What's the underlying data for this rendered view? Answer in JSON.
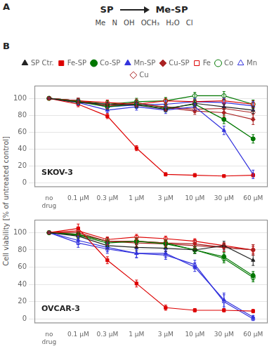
{
  "chart_data": [
    {
      "type": "line",
      "title": "SKOV-3",
      "y_label": "Cell viability [% of untreated control]",
      "annotations": [
        "A",
        "B",
        "SP",
        "Me-SP",
        "Me",
        "N",
        "OH",
        "OCH₃",
        "H₂O",
        "Cl"
      ],
      "categories": [
        "no\ndrug",
        "0.1 μM",
        "0.3 μM",
        "1 μM",
        "3 μM",
        "10 μM",
        "30 μM",
        "60 μM"
      ],
      "ylim": [
        -5,
        115
      ],
      "yticks": [
        0,
        20,
        40,
        60,
        80,
        100
      ],
      "grid": "y",
      "legend": "top",
      "series": [
        {
          "name": "Fe",
          "color": "#dd0000",
          "marker": "square-open",
          "line_style": "solid",
          "values": [
            100,
            97,
            95,
            93,
            97,
            96,
            97,
            93
          ],
          "errors": [
            1,
            3,
            3,
            3,
            3,
            3,
            3,
            4
          ]
        },
        {
          "name": "Co",
          "color": "#007700",
          "marker": "circle-open",
          "line_style": "solid",
          "values": [
            100,
            97,
            93,
            96,
            97,
            103,
            103,
            93
          ],
          "errors": [
            1,
            3,
            4,
            4,
            4,
            4,
            5,
            5
          ]
        },
        {
          "name": "Mn",
          "color": "#3333dd",
          "marker": "triangle-open",
          "line_style": "solid",
          "values": [
            100,
            97,
            90,
            92,
            93,
            96,
            95,
            91
          ],
          "errors": [
            1,
            3,
            4,
            4,
            4,
            4,
            5,
            5
          ]
        },
        {
          "name": "Cu",
          "color": "#aa2222",
          "marker": "diamond-open",
          "line_style": "solid",
          "values": [
            100,
            97,
            91,
            93,
            90,
            87,
            88,
            83
          ],
          "errors": [
            1,
            3,
            4,
            4,
            4,
            4,
            5,
            6
          ]
        },
        {
          "name": "SP Ctr.",
          "color": "#222222",
          "marker": "triangle",
          "line_style": "solid",
          "values": [
            100,
            95,
            93,
            92,
            87,
            94,
            90,
            86
          ],
          "errors": [
            1,
            2,
            2,
            3,
            3,
            3,
            3,
            4
          ]
        },
        {
          "name": "Fe-SP",
          "color": "#dd0000",
          "marker": "square",
          "line_style": "solid",
          "values": [
            100,
            93,
            79,
            41,
            10,
            9,
            8,
            9
          ],
          "errors": [
            1,
            3,
            3,
            3,
            2,
            2,
            1,
            2
          ]
        },
        {
          "name": "Co-SP",
          "color": "#007700",
          "marker": "circle",
          "line_style": "solid",
          "values": [
            100,
            96,
            90,
            93,
            88,
            93,
            75,
            52
          ],
          "errors": [
            1,
            3,
            3,
            4,
            4,
            4,
            5,
            5
          ]
        },
        {
          "name": "Mn-SP",
          "color": "#3333dd",
          "marker": "triangle",
          "line_style": "solid",
          "values": [
            100,
            95,
            86,
            90,
            86,
            90,
            62,
            10
          ],
          "errors": [
            1,
            3,
            3,
            4,
            4,
            4,
            5,
            5
          ]
        },
        {
          "name": "Cu-SP",
          "color": "#aa2222",
          "marker": "diamond",
          "line_style": "solid",
          "values": [
            100,
            97,
            91,
            95,
            89,
            85,
            83,
            75
          ],
          "errors": [
            1,
            3,
            3,
            4,
            4,
            4,
            5,
            6
          ]
        }
      ]
    },
    {
      "type": "line",
      "title": "OVCAR-3",
      "categories": [
        "no\ndrug",
        "0.1 μM",
        "0.3 μM",
        "1 μM",
        "3 μM",
        "10 μM",
        "30 μM",
        "60 μM"
      ],
      "ylim": [
        -5,
        115
      ],
      "yticks": [
        0,
        20,
        40,
        60,
        80,
        100
      ],
      "grid": "y",
      "series": [
        {
          "name": "Fe",
          "color": "#dd0000",
          "marker": "square-open",
          "line_style": "solid",
          "values": [
            100,
            102,
            92,
            95,
            93,
            90,
            85,
            80
          ],
          "errors": [
            1,
            3,
            3,
            3,
            3,
            3,
            3,
            4
          ]
        },
        {
          "name": "Co",
          "color": "#007700",
          "marker": "circle-open",
          "line_style": "solid",
          "values": [
            100,
            98,
            90,
            90,
            88,
            80,
            70,
            48
          ],
          "errors": [
            1,
            3,
            4,
            4,
            4,
            4,
            5,
            5
          ]
        },
        {
          "name": "Mn",
          "color": "#3333dd",
          "marker": "triangle-open",
          "line_style": "solid",
          "values": [
            100,
            88,
            81,
            76,
            74,
            63,
            20,
            0
          ],
          "errors": [
            1,
            5,
            5,
            5,
            5,
            5,
            8,
            2
          ]
        },
        {
          "name": "Cu",
          "color": "#aa2222",
          "marker": "diamond-open",
          "line_style": "solid",
          "values": [
            100,
            98,
            90,
            88,
            87,
            85,
            83,
            80
          ],
          "errors": [
            1,
            3,
            4,
            4,
            4,
            4,
            5,
            6
          ]
        },
        {
          "name": "SP Ctr.",
          "color": "#222222",
          "marker": "triangle",
          "line_style": "solid",
          "values": [
            100,
            96,
            85,
            83,
            82,
            80,
            85,
            68
          ],
          "errors": [
            1,
            3,
            4,
            4,
            4,
            4,
            5,
            6
          ]
        },
        {
          "name": "Fe-SP",
          "color": "#dd0000",
          "marker": "square",
          "line_style": "solid",
          "values": [
            100,
            105,
            68,
            41,
            13,
            10,
            10,
            9
          ],
          "errors": [
            1,
            5,
            4,
            4,
            3,
            2,
            2,
            2
          ]
        },
        {
          "name": "Co-SP",
          "color": "#007700",
          "marker": "circle",
          "line_style": "solid",
          "values": [
            100,
            97,
            88,
            90,
            87,
            80,
            72,
            50
          ],
          "errors": [
            1,
            3,
            4,
            4,
            4,
            4,
            5,
            5
          ]
        },
        {
          "name": "Mn-SP",
          "color": "#3333dd",
          "marker": "triangle",
          "line_style": "solid",
          "values": [
            100,
            91,
            83,
            76,
            76,
            60,
            22,
            2
          ],
          "errors": [
            1,
            5,
            5,
            5,
            5,
            5,
            8,
            2
          ]
        },
        {
          "name": "Cu-SP",
          "color": "#aa2222",
          "marker": "diamond",
          "line_style": "solid",
          "values": [
            100,
            100,
            90,
            90,
            88,
            87,
            83,
            80
          ],
          "errors": [
            1,
            3,
            4,
            4,
            4,
            4,
            5,
            6
          ]
        }
      ]
    }
  ]
}
